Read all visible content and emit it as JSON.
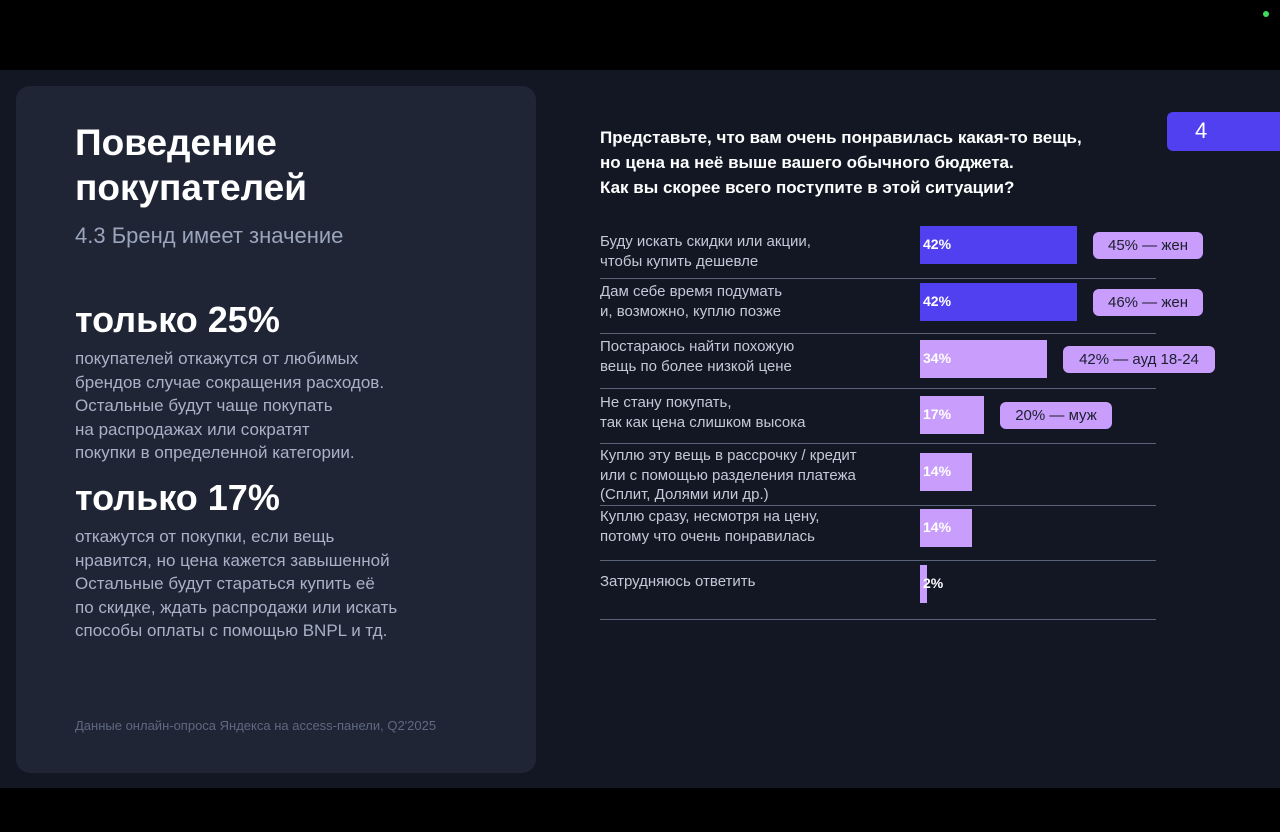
{
  "left": {
    "title": "Поведение\nпокупателей",
    "subtitle": "4.3 Бренд имеет значение",
    "stat1": {
      "value": "только 25%",
      "desc": "покупателей откажутся от любимых\nбрендов случае сокращения расходов.\nОстальные будут чаще покупать\nна распродажах или сократят\nпокупки в определенной категории."
    },
    "stat2": {
      "value": "только 17%",
      "desc": "откажутся от покупки, если вещь\nнравится, но цена кажется завышенной\nОстальные будут стараться купить её\nпо скидке, ждать распродажи или искать\nспособы оплаты с помощью BNPL и тд."
    },
    "source": "Данные онлайн-опроса Яндекса на access-панели, Q2'2025"
  },
  "page_number": "4",
  "chart_data": {
    "type": "bar",
    "title": "Представьте, что вам очень понравилась какая-то вещь,\nно цена на неё выше вашего обычного бюджета.\nКак вы скорее всего поступите в этой ситуации?",
    "categories": [
      "Буду искать скидки или акции,\nчтобы купить дешевле",
      "Дам себе время подумать\nи, возможно, куплю позже",
      "Постараюсь найти похожую\nвещь по более низкой цене",
      "Не стану покупать,\nтак как цена слишком высока",
      "Куплю эту вещь в рассрочку / кредит\nили с помощью разделения платежа\n(Сплит, Долями или др.)",
      "Куплю сразу, несмотря на цену,\nпотому что очень понравилась",
      "Затрудняюсь ответить"
    ],
    "values": [
      42,
      42,
      34,
      17,
      14,
      14,
      2
    ],
    "value_labels": [
      "42%",
      "42%",
      "34%",
      "17%",
      "14%",
      "14%",
      "2%"
    ],
    "highlighted": [
      true,
      true,
      false,
      false,
      false,
      false,
      false
    ],
    "annotations": [
      "45% — жен",
      "46% — жен",
      "42% — ауд 18-24",
      "20% — муж",
      null,
      null,
      null
    ],
    "xlim": [
      0,
      42
    ],
    "colors": {
      "primary": "#5040f0",
      "secondary": "#c89dfb",
      "annotation": "#c89dfb"
    }
  }
}
